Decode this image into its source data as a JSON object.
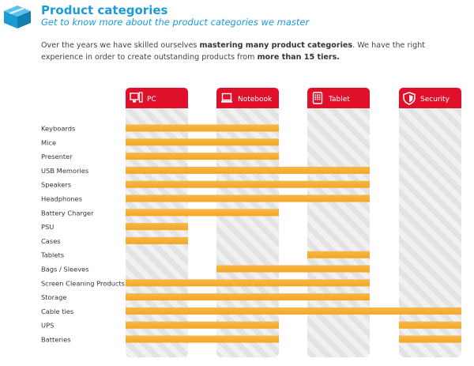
{
  "header": {
    "title": "Product categories",
    "subtitle": "Get to know more about the product categories we master",
    "intro": [
      {
        "text": "Over the years we have skilled ourselves ",
        "bold": false
      },
      {
        "text": "mastering many product categories",
        "bold": true
      },
      {
        "text": ". We have the right experience in order to create outstanding products from ",
        "bold": false
      },
      {
        "text": "more than 15 tiers.",
        "bold": true
      }
    ]
  },
  "colors": {
    "brand_blue": "#1a9bd4",
    "column_red": "#e0102a",
    "bar_orange": "#f5a623",
    "bar_orange_light": "#f7b84a",
    "stripe_light": "#f1f1f1",
    "stripe_dark": "#e3e3e3"
  },
  "chart_data": {
    "type": "table",
    "columns": [
      {
        "label": "PC",
        "icon": "pc-icon"
      },
      {
        "label": "Notebook",
        "icon": "notebook-icon"
      },
      {
        "label": "Tablet",
        "icon": "tablet-icon"
      },
      {
        "label": "Security",
        "icon": "shield-icon"
      }
    ],
    "rows": [
      {
        "label": "Keyboards",
        "coverage": [
          1,
          1,
          0,
          0
        ]
      },
      {
        "label": "Mice",
        "coverage": [
          1,
          1,
          0,
          0
        ]
      },
      {
        "label": "Presenter",
        "coverage": [
          1,
          1,
          0,
          0
        ]
      },
      {
        "label": "USB Memories",
        "coverage": [
          1,
          1,
          1,
          0
        ]
      },
      {
        "label": "Speakers",
        "coverage": [
          1,
          1,
          1,
          0
        ]
      },
      {
        "label": "Headphones",
        "coverage": [
          1,
          1,
          1,
          0
        ]
      },
      {
        "label": "Battery Charger",
        "coverage": [
          1,
          1,
          0,
          0
        ]
      },
      {
        "label": "PSU",
        "coverage": [
          1,
          0,
          0,
          0
        ]
      },
      {
        "label": "Cases",
        "coverage": [
          1,
          0,
          0,
          0
        ]
      },
      {
        "label": "Tablets",
        "coverage": [
          0,
          0,
          1,
          0
        ]
      },
      {
        "label": "Bags / Sleeves",
        "coverage": [
          0,
          1,
          1,
          0
        ]
      },
      {
        "label": "Screen Cleaning Products",
        "coverage": [
          1,
          1,
          1,
          0
        ]
      },
      {
        "label": "Storage",
        "coverage": [
          1,
          1,
          1,
          0
        ]
      },
      {
        "label": "Cable ties",
        "coverage": [
          1,
          1,
          1,
          1
        ]
      },
      {
        "label": "UPS",
        "coverage": [
          1,
          1,
          0,
          1
        ]
      },
      {
        "label": "Batteries",
        "coverage": [
          1,
          1,
          0,
          1
        ]
      }
    ]
  }
}
